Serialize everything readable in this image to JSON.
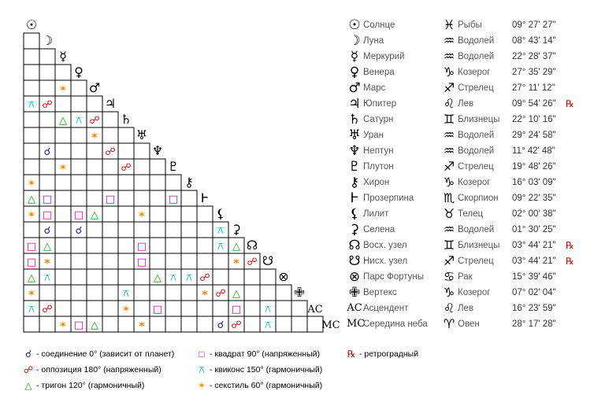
{
  "colors": {
    "conjunction": "#1a1aaa",
    "opposition": "#dd0000",
    "trine": "#00aa00",
    "square": "#cc00cc",
    "quincunx": "#00aacc",
    "sextile": "#ff8800",
    "retrograde": "#cc0000"
  },
  "aspect_symbols": {
    "conj": "☌",
    "opp": "☍",
    "tri": "△",
    "sq": "□",
    "qx": "⚻",
    "sx": "✶"
  },
  "points": [
    {
      "glyph": "☉",
      "name": "Солнце",
      "sign_glyph": "♓",
      "sign": "Рыбы",
      "position": "09° 27' 27\"",
      "retro": ""
    },
    {
      "glyph": "☽",
      "name": "Луна",
      "sign_glyph": "♒",
      "sign": "Водолей",
      "position": "08° 43' 14\"",
      "retro": ""
    },
    {
      "glyph": "☿",
      "name": "Меркурий",
      "sign_glyph": "♒",
      "sign": "Водолей",
      "position": "22° 28' 37\"",
      "retro": ""
    },
    {
      "glyph": "♀",
      "name": "Венера",
      "sign_glyph": "♑",
      "sign": "Козерог",
      "position": "27° 35' 29\"",
      "retro": ""
    },
    {
      "glyph": "♂",
      "name": "Марс",
      "sign_glyph": "♐",
      "sign": "Стрелец",
      "position": "27° 11' 12\"",
      "retro": ""
    },
    {
      "glyph": "♃",
      "name": "Юпитер",
      "sign_glyph": "♌",
      "sign": "Лев",
      "position": "09° 54' 26\"",
      "retro": "℞"
    },
    {
      "glyph": "♄",
      "name": "Сатурн",
      "sign_glyph": "♊",
      "sign": "Близнецы",
      "position": "22° 10' 16\"",
      "retro": ""
    },
    {
      "glyph": "♅",
      "name": "Уран",
      "sign_glyph": "♒",
      "sign": "Водолей",
      "position": "29° 24' 58\"",
      "retro": ""
    },
    {
      "glyph": "♆",
      "name": "Нептун",
      "sign_glyph": "♒",
      "sign": "Водолей",
      "position": "11° 42' 48\"",
      "retro": ""
    },
    {
      "glyph": "♇",
      "name": "Плутон",
      "sign_glyph": "♐",
      "sign": "Стрелец",
      "position": "19° 48' 26\"",
      "retro": ""
    },
    {
      "glyph": "⚷",
      "name": "Хирон",
      "sign_glyph": "♑",
      "sign": "Козерог",
      "position": "16° 03' 09\"",
      "retro": ""
    },
    {
      "glyph": "Ⱶ",
      "name": "Прозерпина",
      "sign_glyph": "♏",
      "sign": "Скорпион",
      "position": "09° 22' 35\"",
      "retro": ""
    },
    {
      "glyph": "⚸",
      "name": "Лилит",
      "sign_glyph": "♉",
      "sign": "Телец",
      "position": "02° 00' 38\"",
      "retro": ""
    },
    {
      "glyph": "⚳",
      "name": "Селена",
      "sign_glyph": "♒",
      "sign": "Водолей",
      "position": "01° 30' 25\"",
      "retro": ""
    },
    {
      "glyph": "☊",
      "name": "Восх. узел",
      "sign_glyph": "♊",
      "sign": "Близнецы",
      "position": "03° 44' 21\"",
      "retro": "℞"
    },
    {
      "glyph": "☋",
      "name": "Нисх. узел",
      "sign_glyph": "♐",
      "sign": "Стрелец",
      "position": "03° 44' 21\"",
      "retro": "℞"
    },
    {
      "glyph": "⊗",
      "name": "Парс Фортуны",
      "sign_glyph": "♋",
      "sign": "Рак",
      "position": "15° 39' 46\"",
      "retro": ""
    },
    {
      "glyph": "✙",
      "name": "Вертекс",
      "sign_glyph": "♑",
      "sign": "Козерог",
      "position": "07° 02' 04\"",
      "retro": ""
    },
    {
      "glyph": "AC",
      "name": "Асцендент",
      "sign_glyph": "♌",
      "sign": "Лев",
      "position": "16° 23' 59\"",
      "retro": ""
    },
    {
      "glyph": "MC",
      "name": "Середина неба",
      "sign_glyph": "♈",
      "sign": "Овен",
      "position": "28° 17' 28\"",
      "retro": ""
    }
  ],
  "aspects": [
    {
      "row": 5,
      "col": 0,
      "type": "qx"
    },
    {
      "row": 5,
      "col": 1,
      "type": "opp"
    },
    {
      "row": 6,
      "col": 2,
      "type": "tri"
    },
    {
      "row": 6,
      "col": 3,
      "type": "qx"
    },
    {
      "row": 6,
      "col": 4,
      "type": "opp"
    },
    {
      "row": 7,
      "col": 4,
      "type": "sx"
    },
    {
      "row": 8,
      "col": 1,
      "type": "conj"
    },
    {
      "row": 8,
      "col": 5,
      "type": "opp"
    },
    {
      "row": 9,
      "col": 2,
      "type": "sx"
    },
    {
      "row": 9,
      "col": 6,
      "type": "opp"
    },
    {
      "row": 4,
      "col": 2,
      "type": "sx"
    },
    {
      "row": 10,
      "col": 0,
      "type": "sx"
    },
    {
      "row": 11,
      "col": 0,
      "type": "tri"
    },
    {
      "row": 11,
      "col": 1,
      "type": "sq"
    },
    {
      "row": 11,
      "col": 5,
      "type": "sq"
    },
    {
      "row": 11,
      "col": 9,
      "type": "sq"
    },
    {
      "row": 12,
      "col": 0,
      "type": "sx"
    },
    {
      "row": 12,
      "col": 1,
      "type": "sq"
    },
    {
      "row": 12,
      "col": 3,
      "type": "sq"
    },
    {
      "row": 12,
      "col": 4,
      "type": "tri"
    },
    {
      "row": 12,
      "col": 7,
      "type": "sx"
    },
    {
      "row": 13,
      "col": 1,
      "type": "conj"
    },
    {
      "row": 13,
      "col": 3,
      "type": "conj"
    },
    {
      "row": 13,
      "col": 12,
      "type": "qx"
    },
    {
      "row": 14,
      "col": 0,
      "type": "sq"
    },
    {
      "row": 14,
      "col": 1,
      "type": "tri"
    },
    {
      "row": 14,
      "col": 7,
      "type": "sq"
    },
    {
      "row": 14,
      "col": 12,
      "type": "qx"
    },
    {
      "row": 14,
      "col": 13,
      "type": "tri"
    },
    {
      "row": 15,
      "col": 0,
      "type": "sq"
    },
    {
      "row": 15,
      "col": 1,
      "type": "sx"
    },
    {
      "row": 15,
      "col": 7,
      "type": "sq"
    },
    {
      "row": 15,
      "col": 13,
      "type": "sx"
    },
    {
      "row": 15,
      "col": 14,
      "type": "opp"
    },
    {
      "row": 16,
      "col": 0,
      "type": "tri"
    },
    {
      "row": 16,
      "col": 1,
      "type": "qx"
    },
    {
      "row": 16,
      "col": 8,
      "type": "tri"
    },
    {
      "row": 16,
      "col": 9,
      "type": "qx"
    },
    {
      "row": 16,
      "col": 10,
      "type": "qx"
    },
    {
      "row": 16,
      "col": 11,
      "type": "opp"
    },
    {
      "row": 17,
      "col": 0,
      "type": "sx"
    },
    {
      "row": 17,
      "col": 6,
      "type": "qx"
    },
    {
      "row": 17,
      "col": 11,
      "type": "sx"
    },
    {
      "row": 17,
      "col": 12,
      "type": "opp"
    },
    {
      "row": 17,
      "col": 13,
      "type": "tri"
    },
    {
      "row": 18,
      "col": 0,
      "type": "qx"
    },
    {
      "row": 18,
      "col": 1,
      "type": "opp"
    },
    {
      "row": 18,
      "col": 6,
      "type": "sx"
    },
    {
      "row": 18,
      "col": 8,
      "type": "sq"
    },
    {
      "row": 18,
      "col": 13,
      "type": "sq"
    },
    {
      "row": 18,
      "col": 15,
      "type": "qx"
    },
    {
      "row": 19,
      "col": 2,
      "type": "sx"
    },
    {
      "row": 19,
      "col": 3,
      "type": "sq"
    },
    {
      "row": 19,
      "col": 4,
      "type": "tri"
    },
    {
      "row": 19,
      "col": 7,
      "type": "sx"
    },
    {
      "row": 19,
      "col": 12,
      "type": "conj"
    },
    {
      "row": 19,
      "col": 13,
      "type": "opp"
    },
    {
      "row": 19,
      "col": 15,
      "type": "qx"
    }
  ],
  "legend": [
    {
      "type": "conj",
      "text": "- соединение 0° (зависит от планет)"
    },
    {
      "type": "opp",
      "text": "- оппозиция 180° (напряженный)"
    },
    {
      "type": "tri",
      "text": "- тригон 120° (гармоничный)"
    },
    {
      "type": "sq",
      "text": "- квадрат 90° (напряженный)"
    },
    {
      "type": "qx",
      "text": "- квиконс 150° (гармоничный)"
    },
    {
      "type": "sx",
      "text": "- секстиль 60° (гармоничный)"
    }
  ],
  "legend_retro": {
    "glyph": "℞",
    "text": "- ретроградный"
  }
}
